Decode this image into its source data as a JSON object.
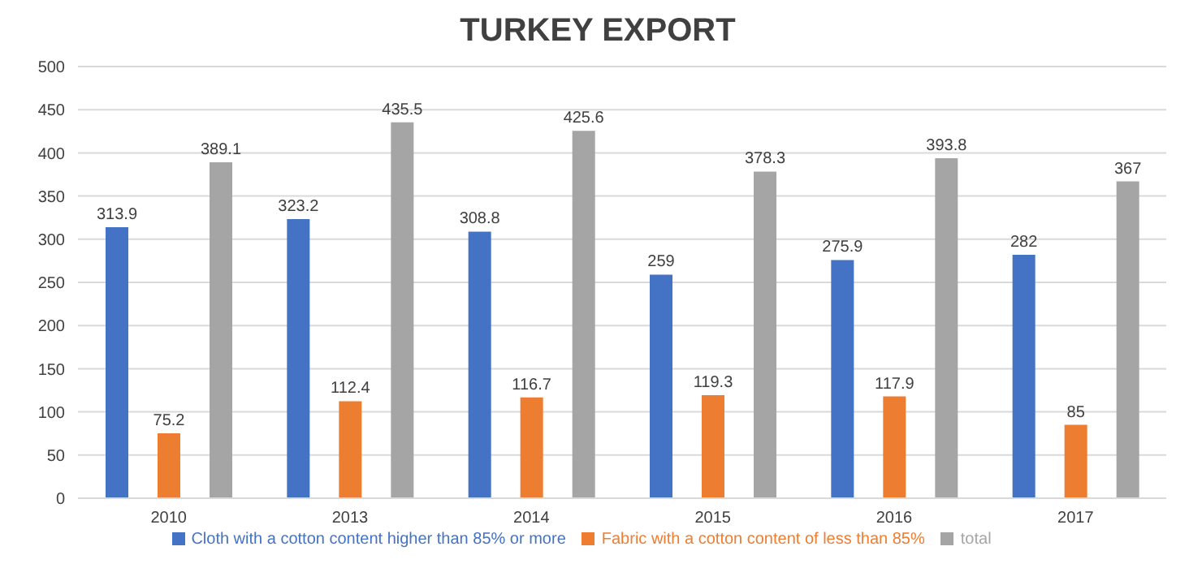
{
  "chart_data": {
    "type": "bar",
    "title": "TURKEY EXPORT",
    "categories": [
      "2010",
      "2013",
      "2014",
      "2015",
      "2016",
      "2017"
    ],
    "series": [
      {
        "name": "Cloth with a cotton content higher than 85% or more",
        "color": "#4472c4",
        "values": [
          313.9,
          323.2,
          308.8,
          259,
          275.9,
          282
        ]
      },
      {
        "name": "Fabric with a cotton content of less than 85%",
        "color": "#ed7d31",
        "values": [
          75.2,
          112.4,
          116.7,
          119.3,
          117.9,
          85
        ]
      },
      {
        "name": "total",
        "color": "#a5a5a5",
        "values": [
          389.1,
          435.5,
          425.6,
          378.3,
          393.8,
          367
        ]
      }
    ],
    "ylim": [
      0,
      500
    ],
    "yticks": [
      0,
      50,
      100,
      150,
      200,
      250,
      300,
      350,
      400,
      450,
      500
    ],
    "grid": "y",
    "legend": "bottom",
    "data_labels": true
  }
}
